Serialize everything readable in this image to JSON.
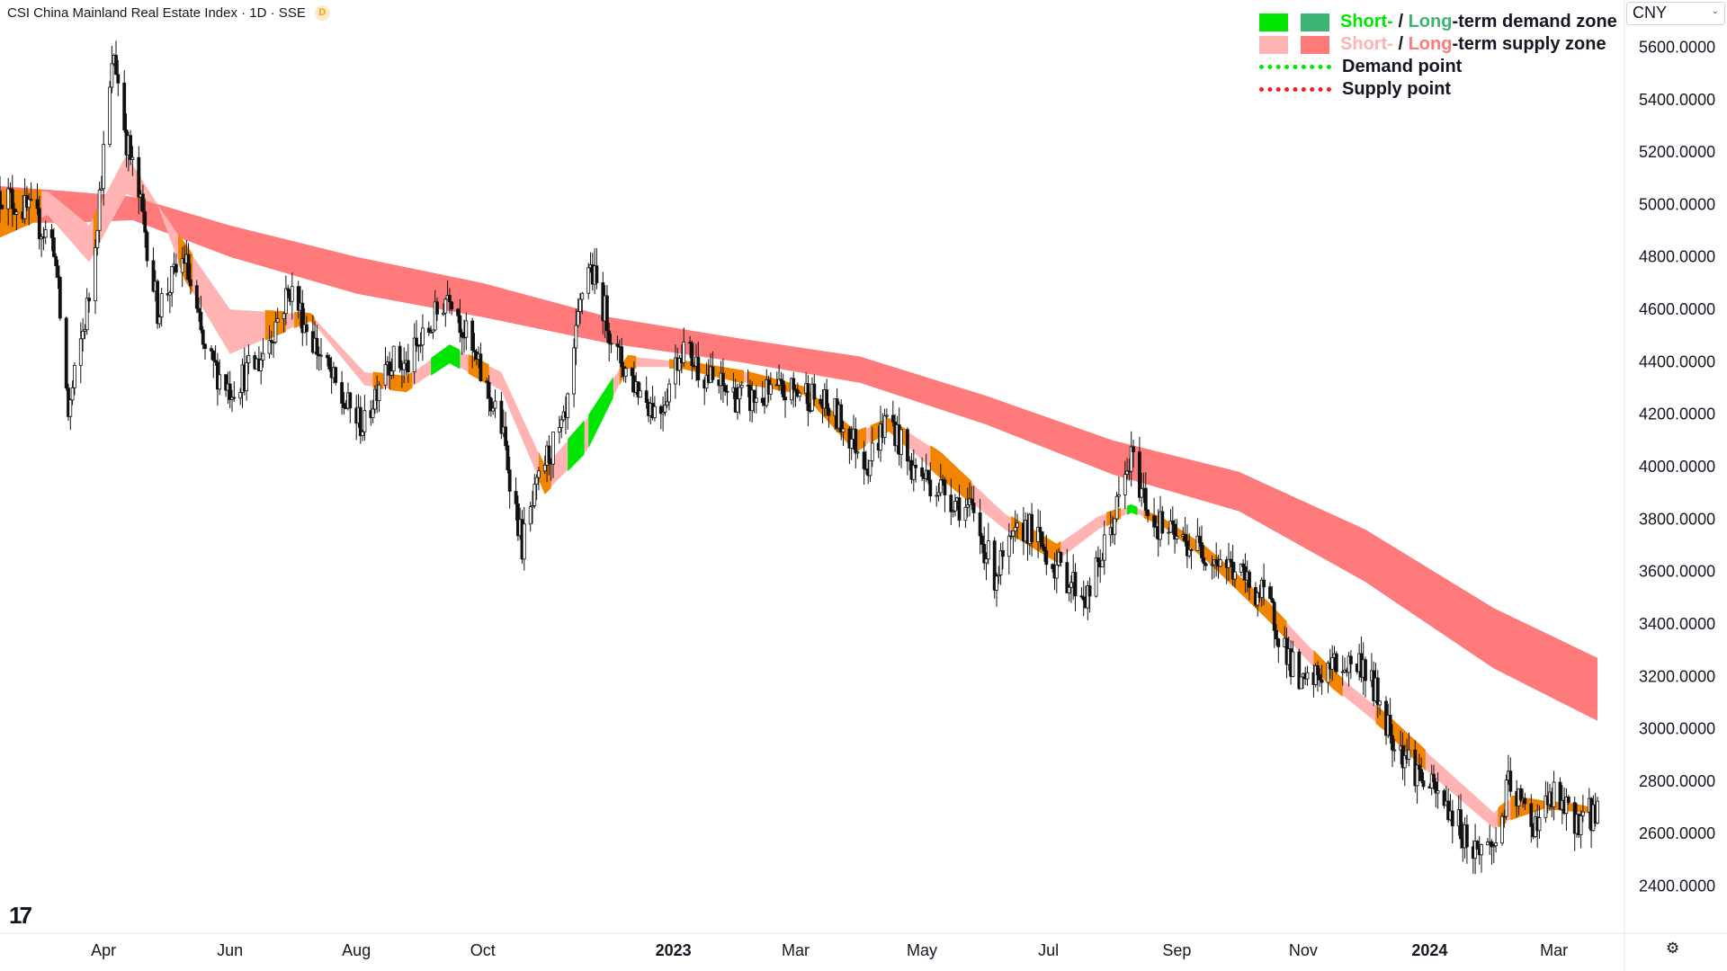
{
  "header": {
    "title": "CSI China Mainland Real Estate Index · 1D · SSE",
    "flag": "D"
  },
  "currency": {
    "label": "CNY",
    "caret": "⌄"
  },
  "legend": {
    "row1": {
      "short": "Short-",
      "sep": " / ",
      "long": "Long",
      "rest": "-term demand zone"
    },
    "row2": {
      "short": "Short-",
      "sep": " / ",
      "long": "Long",
      "rest": "-term supply zone"
    },
    "row3": "Demand point",
    "row4": "Supply point",
    "colors": {
      "short_demand": "#00e600",
      "long_demand": "#3cb371",
      "short_supply": "#ffb3b3",
      "long_supply": "#ff7a7a",
      "mixed": "#f28500",
      "demand_point": "#00e600",
      "supply_point": "#ff1a1a"
    }
  },
  "icons": {
    "settings": "gear-icon",
    "logo": "tradingview-logo-icon"
  },
  "chart_data": {
    "type": "line",
    "title": "CSI China Mainland Real Estate Index · 1D · SSE",
    "xlabel": "",
    "ylabel": "CNY",
    "ylim": [
      2220,
      5780
    ],
    "y_ticks": [
      "2400.0000",
      "2600.0000",
      "2800.0000",
      "3000.0000",
      "3200.0000",
      "3400.0000",
      "3600.0000",
      "3800.0000",
      "4000.0000",
      "4200.0000",
      "4400.0000",
      "4600.0000",
      "4800.0000",
      "5000.0000",
      "5200.0000",
      "5400.0000",
      "5600.0000"
    ],
    "x_tick_labels": [
      "Apr",
      "Jun",
      "Aug",
      "Oct",
      "2023",
      "Mar",
      "May",
      "Jul",
      "Sep",
      "Nov",
      "2024",
      "Mar"
    ],
    "x_tick_dates": [
      "2022-04-01",
      "2022-06-01",
      "2022-08-01",
      "2022-10-01",
      "2023-01-01",
      "2023-03-01",
      "2023-05-01",
      "2023-07-01",
      "2023-09-01",
      "2023-11-01",
      "2024-01-01",
      "2024-03-01"
    ],
    "x_tick_bold": [
      "2023",
      "2024"
    ],
    "date_range": [
      "2022-02-10",
      "2024-03-22"
    ],
    "series": [
      {
        "role": "close",
        "dates": [
          "2022-02-10",
          "2022-02-25",
          "2022-03-08",
          "2022-03-15",
          "2022-03-25",
          "2022-04-06",
          "2022-04-12",
          "2022-04-20",
          "2022-04-27",
          "2022-05-10",
          "2022-05-20",
          "2022-06-01",
          "2022-06-15",
          "2022-06-30",
          "2022-07-10",
          "2022-07-25",
          "2022-08-05",
          "2022-08-15",
          "2022-08-25",
          "2022-09-05",
          "2022-09-15",
          "2022-09-25",
          "2022-10-10",
          "2022-10-20",
          "2022-10-31",
          "2022-11-10",
          "2022-11-20",
          "2022-11-28",
          "2022-12-05",
          "2022-12-15",
          "2022-12-25",
          "2023-01-05",
          "2023-01-20",
          "2023-02-05",
          "2023-02-20",
          "2023-03-05",
          "2023-03-20",
          "2023-04-05",
          "2023-04-15",
          "2023-04-25",
          "2023-05-10",
          "2023-05-25",
          "2023-06-05",
          "2023-06-20",
          "2023-07-05",
          "2023-07-20",
          "2023-07-31",
          "2023-08-10",
          "2023-08-20",
          "2023-09-01",
          "2023-09-15",
          "2023-09-30",
          "2023-10-15",
          "2023-10-31",
          "2023-11-15",
          "2023-11-30",
          "2023-12-15",
          "2023-12-31",
          "2024-01-10",
          "2024-01-22",
          "2024-02-02",
          "2024-02-08",
          "2024-02-20",
          "2024-03-01",
          "2024-03-10",
          "2024-03-22"
        ],
        "values": [
          5050,
          4960,
          4850,
          4200,
          4650,
          5580,
          5250,
          4950,
          4600,
          4800,
          4420,
          4300,
          4400,
          4680,
          4500,
          4250,
          4150,
          4420,
          4380,
          4520,
          4680,
          4450,
          4150,
          3700,
          4020,
          4160,
          4800,
          4620,
          4420,
          4300,
          4200,
          4460,
          4320,
          4250,
          4280,
          4290,
          4200,
          4020,
          4200,
          4000,
          3920,
          3820,
          3590,
          3780,
          3620,
          3500,
          3760,
          4030,
          3800,
          3720,
          3680,
          3600,
          3480,
          3150,
          3240,
          3250,
          2960,
          2780,
          2700,
          2540,
          2560,
          2780,
          2640,
          2740,
          2650,
          2680
        ]
      },
      {
        "name": "Short-term",
        "role": "short_band",
        "dates": [
          "2022-02-10",
          "2022-03-05",
          "2022-03-25",
          "2022-04-12",
          "2022-04-27",
          "2022-05-10",
          "2022-06-01",
          "2022-07-10",
          "2022-08-05",
          "2022-08-25",
          "2022-09-15",
          "2022-10-10",
          "2022-10-31",
          "2022-11-20",
          "2022-12-10",
          "2023-01-05",
          "2023-02-05",
          "2023-03-05",
          "2023-03-30",
          "2023-04-15",
          "2023-05-10",
          "2023-06-10",
          "2023-07-05",
          "2023-07-25",
          "2023-08-10",
          "2023-08-25",
          "2023-09-15",
          "2023-10-15",
          "2023-11-15",
          "2023-12-10",
          "2024-01-01",
          "2024-02-01",
          "2024-02-10",
          "2024-02-25",
          "2024-03-10",
          "2024-03-22"
        ],
        "upper": [
          5050,
          5050,
          4920,
          5190,
          5000,
          4850,
          4600,
          4580,
          4360,
          4340,
          4460,
          4360,
          4000,
          4180,
          4420,
          4400,
          4360,
          4300,
          4130,
          4180,
          4050,
          3820,
          3700,
          3810,
          3850,
          3800,
          3690,
          3480,
          3220,
          3060,
          2900,
          2680,
          2740,
          2720,
          2710,
          2690
        ],
        "lower": [
          4880,
          4960,
          4780,
          5040,
          5000,
          4720,
          4430,
          4560,
          4310,
          4290,
          4400,
          4290,
          3900,
          4060,
          4380,
          4380,
          4320,
          4280,
          4060,
          4140,
          3960,
          3760,
          3640,
          3760,
          3830,
          3780,
          3650,
          3420,
          3160,
          3000,
          2830,
          2620,
          2660,
          2700,
          2690,
          2680
        ]
      },
      {
        "name": "Long-term",
        "role": "long_band",
        "dates": [
          "2022-02-10",
          "2022-03-15",
          "2022-04-15",
          "2022-06-01",
          "2022-08-01",
          "2022-10-01",
          "2022-12-01",
          "2023-02-01",
          "2023-04-01",
          "2023-06-01",
          "2023-08-01",
          "2023-10-01",
          "2023-12-01",
          "2024-02-01",
          "2024-03-22"
        ],
        "upper": [
          5070,
          5050,
          5030,
          4920,
          4800,
          4700,
          4570,
          4490,
          4420,
          4270,
          4100,
          3980,
          3760,
          3460,
          3270
        ],
        "lower": [
          4930,
          4930,
          4940,
          4800,
          4660,
          4570,
          4470,
          4400,
          4320,
          4160,
          3970,
          3830,
          3560,
          3230,
          3030
        ]
      }
    ],
    "legend_position": "top-right",
    "grid": false
  }
}
